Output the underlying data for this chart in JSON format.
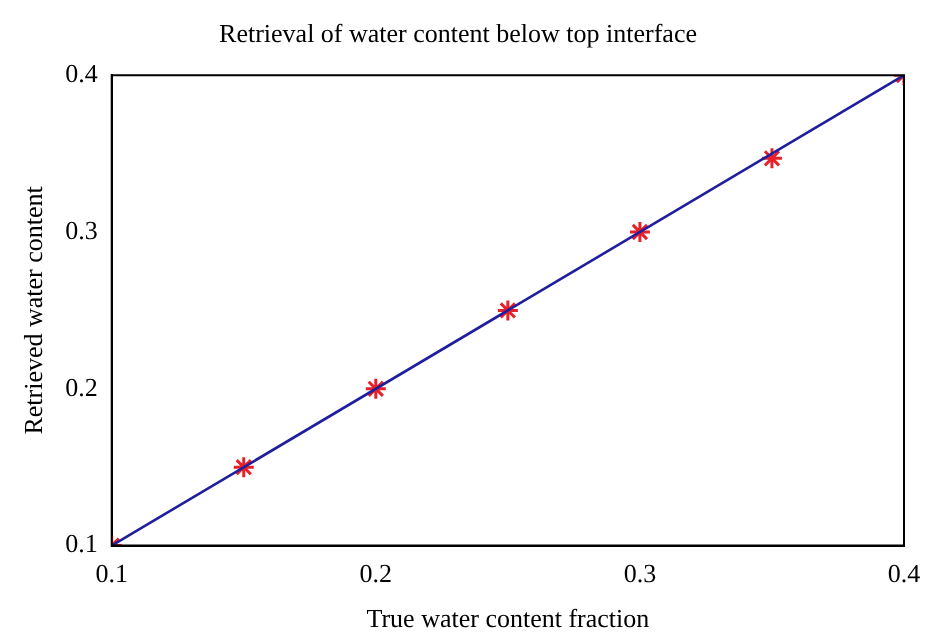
{
  "chart_data": {
    "type": "scatter",
    "title": "Retrieval of water content below top interface",
    "xlabel": "True water content fraction",
    "ylabel": "Retrieved water content",
    "xlim": [
      0.1,
      0.4
    ],
    "xticks": [
      0.1,
      0.2,
      0.3,
      0.4
    ],
    "ylim": [
      0.1,
      0.4
    ],
    "yticks": [
      0.1,
      0.2,
      0.3,
      0.4
    ],
    "grid": false,
    "legend": false,
    "series": [
      {
        "type": "line",
        "color": "#1f1f9e",
        "x": [
          0.1,
          0.4
        ],
        "values": [
          0.1,
          0.4
        ],
        "marker": "none",
        "line_style": "solid"
      },
      {
        "type": "scatter",
        "color": "#e8202a",
        "x": [
          0.1,
          0.15,
          0.2,
          0.25,
          0.3,
          0.35,
          0.4
        ],
        "values": [
          0.1,
          0.15,
          0.2,
          0.25,
          0.3,
          0.347,
          0.4
        ],
        "marker": "cross"
      }
    ]
  }
}
